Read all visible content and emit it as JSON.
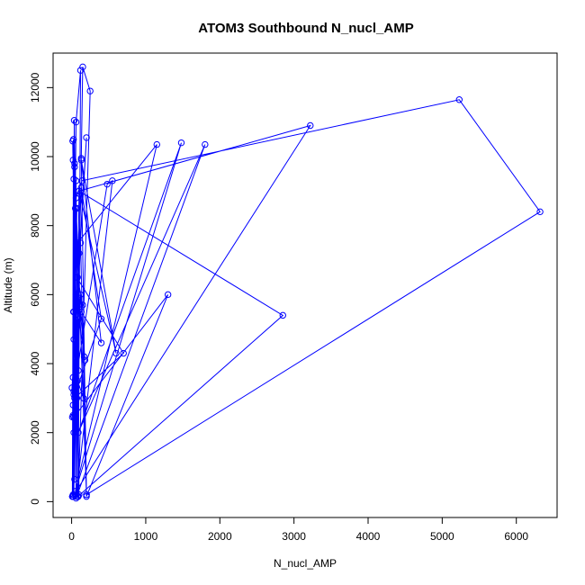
{
  "chart_data": {
    "type": "line",
    "title": "ATOM3 Southbound N_nucl_AMP",
    "xlabel": "N_nucl_AMP",
    "ylabel": "Altitude (m)",
    "xlim": [
      -250,
      6550
    ],
    "ylim": [
      -460,
      13000
    ],
    "x_ticks": [
      0,
      1000,
      2000,
      3000,
      4000,
      5000,
      6000
    ],
    "y_ticks": [
      0,
      2000,
      4000,
      6000,
      8000,
      10000,
      12000
    ],
    "grid": false,
    "legend": "none",
    "series_color": "#0000ff",
    "markers": "open-circle",
    "series": [
      {
        "x": [
          10,
          25,
          40,
          60,
          30,
          20,
          35,
          50,
          80,
          15,
          20,
          100,
          60,
          30,
          200,
          5,
          20,
          60,
          120,
          90,
          250,
          150,
          130,
          200,
          40,
          60,
          550,
          480,
          30,
          20,
          100,
          80,
          1150,
          50,
          1480,
          90,
          1800,
          60,
          2850,
          100,
          3220,
          30,
          60,
          140,
          5230,
          6320,
          200,
          170,
          80,
          150,
          130,
          400,
          130,
          600,
          100,
          70,
          20,
          30,
          120,
          200,
          1300,
          50,
          30,
          160,
          80,
          120,
          180,
          100,
          60,
          400,
          130,
          10,
          90,
          70,
          700,
          40,
          100,
          30,
          70,
          25,
          20,
          30,
          60,
          40,
          10
        ],
        "y": [
          150,
          10500,
          9700,
          6000,
          5500,
          150,
          11050,
          8500,
          150,
          10450,
          9900,
          200,
          9300,
          4700,
          10550,
          3300,
          2800,
          11000,
          12500,
          150,
          11900,
          12600,
          9950,
          200,
          9800,
          150,
          9300,
          9200,
          3200,
          200,
          7200,
          7500,
          10350,
          300,
          10400,
          2000,
          10350,
          100,
          5400,
          9000,
          10900,
          200,
          8800,
          9300,
          11650,
          8400,
          200,
          4200,
          6500,
          5700,
          5500,
          4600,
          9900,
          4300,
          9000,
          3000,
          2500,
          3100,
          7500,
          150,
          6000,
          2500,
          9350,
          3000,
          3500,
          6000,
          4100,
          5300,
          3200,
          5300,
          9100,
          2450,
          3800,
          6500,
          4300,
          3000,
          5900,
          2450,
          8500,
          5500,
          3600,
          2000,
          5800,
          650,
          150
        ]
      }
    ]
  }
}
